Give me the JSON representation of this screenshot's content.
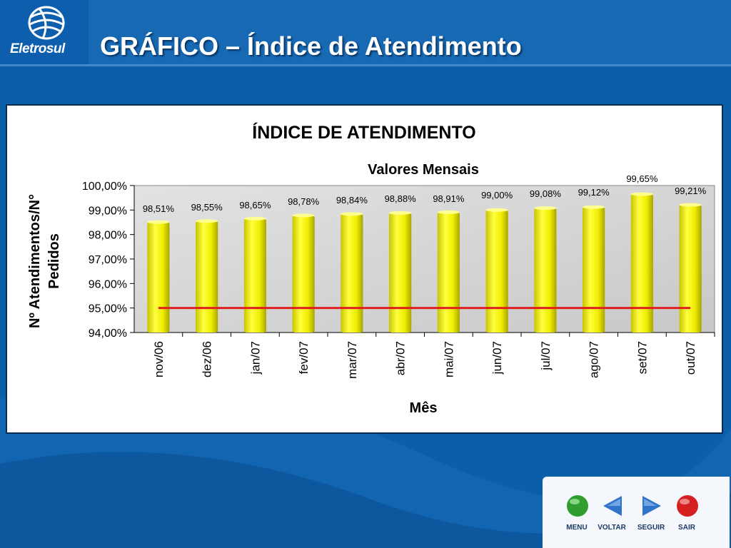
{
  "header": {
    "logo_text": "Eletrosul",
    "title": "GRÁFICO – Índice de Atendimento"
  },
  "chart_data": {
    "type": "bar",
    "title": "ÍNDICE DE ATENDIMENTO",
    "subtitle": "Valores Mensais",
    "xlabel": "Mês",
    "ylabel_line1": "Nº Atendimentos/N°",
    "ylabel_line2": "Pedidos",
    "categories": [
      "nov/06",
      "dez/06",
      "jan/07",
      "fev/07",
      "mar/07",
      "abr/07",
      "mai/07",
      "jun/07",
      "jul/07",
      "ago/07",
      "set/07",
      "out/07"
    ],
    "values": [
      98.51,
      98.55,
      98.65,
      98.78,
      98.84,
      98.88,
      98.91,
      99.0,
      99.08,
      99.12,
      99.65,
      99.21
    ],
    "value_labels": [
      "98,51%",
      "98,55%",
      "98,65%",
      "98,78%",
      "98,84%",
      "98,88%",
      "98,91%",
      "99,00%",
      "99,08%",
      "99,12%",
      "99,65%",
      "99,21%"
    ],
    "ylim": [
      94,
      100
    ],
    "yticks": [
      94,
      95,
      96,
      97,
      98,
      99,
      100
    ],
    "ytick_labels": [
      "94,00%",
      "95,00%",
      "96,00%",
      "97,00%",
      "98,00%",
      "99,00%",
      "100,00%"
    ],
    "target_value": 95,
    "bar_color": "#f2f000",
    "target_color": "#e02020",
    "grid": false
  },
  "nav": {
    "menu": "MENU",
    "voltar": "VOLTAR",
    "seguir": "SEGUIR",
    "sair": "SAIR"
  }
}
